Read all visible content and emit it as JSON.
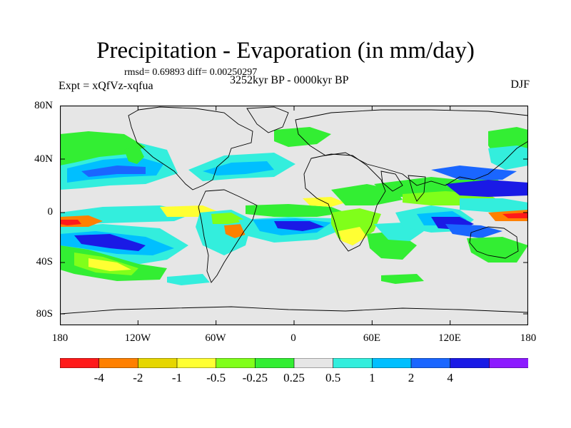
{
  "title": "Precipitation - Evaporation (in mm/day)",
  "stats": "rmsd= 0.69893 diff= 0.00250297",
  "period": "3252kyr BP - 0000kyr BP",
  "experiment": "Expt = xQfVz-xqfua",
  "season": "DJF",
  "lat_labels": [
    "80N",
    "40N",
    "0",
    "40S",
    "80S"
  ],
  "lon_labels": [
    "180",
    "120W",
    "60W",
    "0",
    "60E",
    "120E",
    "180"
  ],
  "colorbar": {
    "labels": [
      "-4",
      "-2",
      "-1",
      "-0.5",
      "-0.25",
      "0.25",
      "0.5",
      "1",
      "2",
      "4"
    ],
    "colors": [
      "#ff1a1a",
      "#ff8000",
      "#e6d600",
      "#ffff33",
      "#80ff1a",
      "#33ee33",
      "#e6e6e6",
      "#33eedd",
      "#00bfff",
      "#1a66ff",
      "#1a1ae6",
      "#8c1aff"
    ]
  },
  "map_colors": {
    "ocean_background": "#e6e6e6",
    "coastline": "#000000"
  }
}
